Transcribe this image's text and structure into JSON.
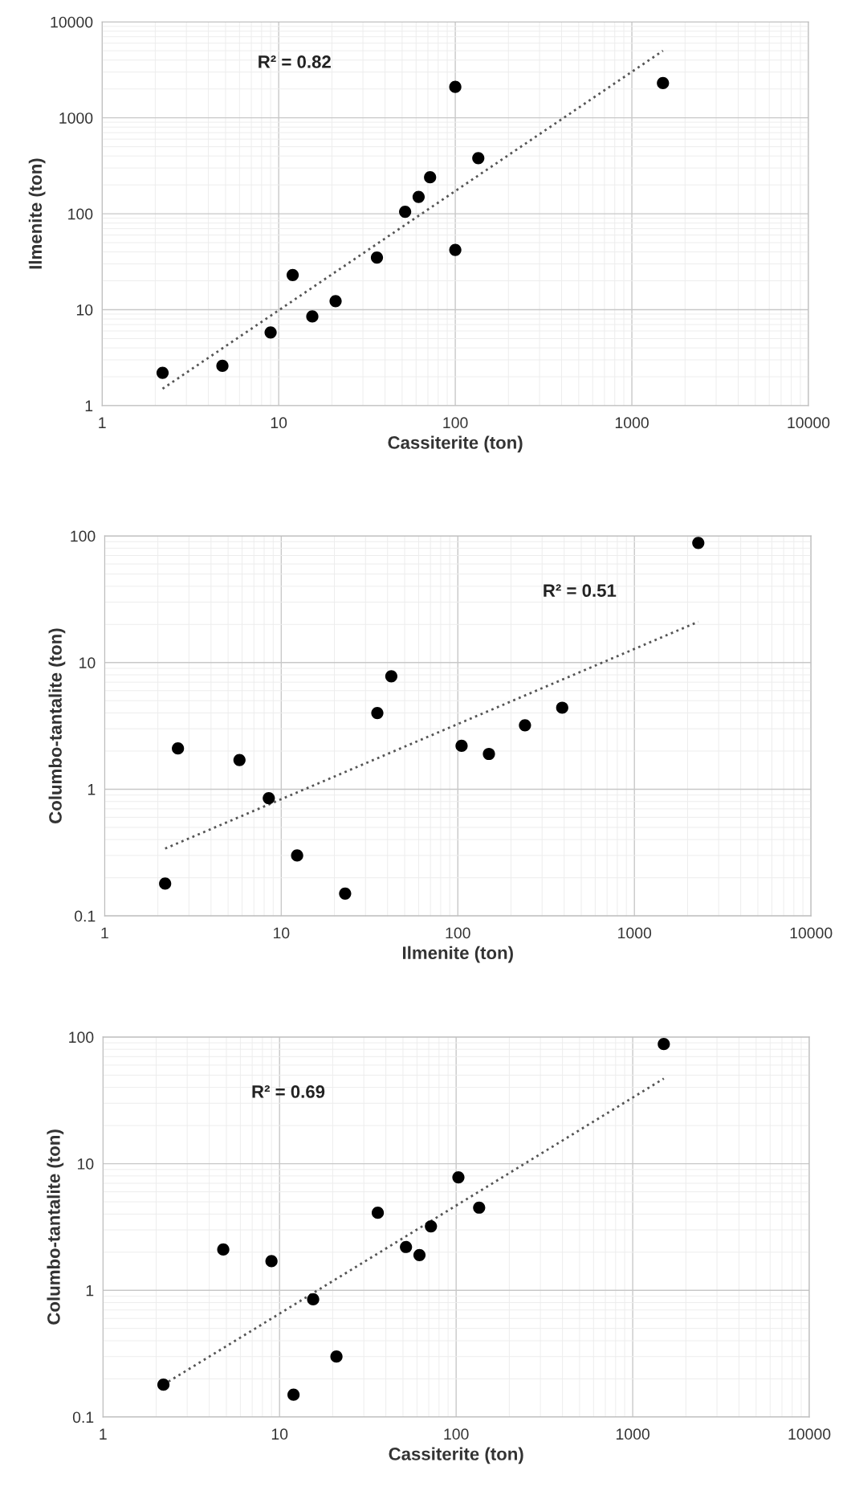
{
  "chart_data": [
    {
      "type": "scatter",
      "xlabel": "Cassiterite (ton)",
      "ylabel": "Ilmenite (ton)",
      "annotations": [
        "R² = 0.82"
      ],
      "log": "xy",
      "grid": true,
      "xlim": [
        1,
        10000
      ],
      "xticks": [
        1,
        10,
        100,
        1000,
        10000
      ],
      "ylim": [
        1,
        10000
      ],
      "yticks": [
        1,
        10,
        100,
        1000,
        10000
      ],
      "series": [
        {
          "color": "#000000",
          "marker": "circle",
          "x": [
            2.2,
            4.8,
            9,
            12,
            15.5,
            21,
            36,
            52,
            62,
            72,
            100,
            100,
            135,
            1500
          ],
          "values": [
            2.2,
            2.6,
            5.8,
            23,
            8.5,
            12.3,
            35,
            105,
            150,
            240,
            2100,
            42,
            380,
            2300
          ]
        },
        {
          "type": "line",
          "color": "#555555",
          "line_style": "dotted",
          "marker": "none",
          "x": [
            2.2,
            1500
          ],
          "values": [
            1.5,
            5000
          ]
        }
      ]
    },
    {
      "type": "scatter",
      "xlabel": "Ilmenite (ton)",
      "ylabel": "Columbo-tantalite (ton)",
      "annotations": [
        "R² = 0.51"
      ],
      "log": "xy",
      "grid": true,
      "xlim": [
        1,
        10000
      ],
      "xticks": [
        1,
        10,
        100,
        1000,
        10000
      ],
      "ylim": [
        0.1,
        100
      ],
      "yticks": [
        0.1,
        1,
        10,
        100
      ],
      "series": [
        {
          "color": "#000000",
          "marker": "circle",
          "x": [
            2.2,
            2.6,
            5.8,
            8.5,
            12.3,
            23,
            35,
            42,
            105,
            150,
            240,
            390,
            2300
          ],
          "values": [
            0.18,
            2.1,
            1.7,
            0.85,
            0.3,
            0.15,
            4.0,
            7.8,
            2.2,
            1.9,
            3.2,
            4.4,
            88
          ]
        },
        {
          "type": "line",
          "color": "#555555",
          "line_style": "dotted",
          "marker": "none",
          "x": [
            2.2,
            2300
          ],
          "values": [
            0.34,
            21
          ]
        }
      ]
    },
    {
      "type": "scatter",
      "xlabel": "Cassiterite (ton)",
      "ylabel": "Columbo-tantalite (ton)",
      "annotations": [
        "R² = 0.69"
      ],
      "log": "xy",
      "grid": true,
      "xlim": [
        1,
        10000
      ],
      "xticks": [
        1,
        10,
        100,
        1000,
        10000
      ],
      "ylim": [
        0.1,
        100
      ],
      "yticks": [
        0.1,
        1,
        10,
        100
      ],
      "series": [
        {
          "color": "#000000",
          "marker": "circle",
          "x": [
            2.2,
            4.8,
            9,
            15.5,
            12,
            21,
            36,
            52,
            62,
            72,
            103,
            135,
            1500
          ],
          "values": [
            0.18,
            2.1,
            1.7,
            0.85,
            0.15,
            0.3,
            4.1,
            2.2,
            1.9,
            3.2,
            7.8,
            4.5,
            88
          ]
        },
        {
          "type": "line",
          "color": "#555555",
          "line_style": "dotted",
          "marker": "none",
          "x": [
            2.2,
            1500
          ],
          "values": [
            0.18,
            47
          ]
        }
      ]
    }
  ]
}
